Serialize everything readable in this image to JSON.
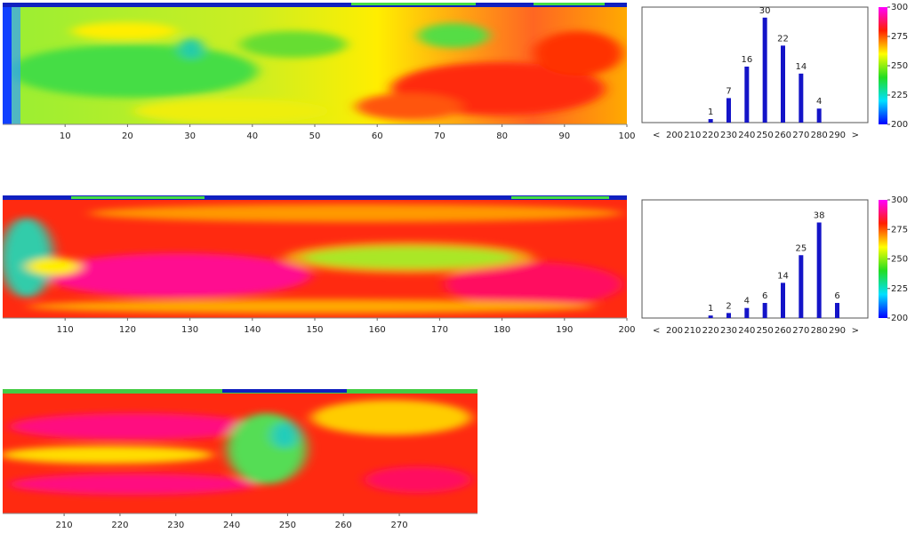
{
  "chart_data": [
    {
      "type": "heatmap",
      "xlim": [
        0,
        100
      ],
      "xticks": [
        10,
        20,
        30,
        40,
        50,
        60,
        70,
        80,
        90,
        100
      ]
    },
    {
      "type": "bar",
      "categories": [
        "<",
        "200",
        "210",
        "220",
        "230",
        "240",
        "250",
        "260",
        "270",
        "280",
        "290",
        ">"
      ],
      "values": [
        0,
        0,
        0,
        1,
        7,
        16,
        30,
        22,
        14,
        4,
        0,
        0
      ],
      "color": "#1414c8",
      "ylim": [
        0,
        33
      ],
      "colorbar": {
        "clim": [
          200,
          300
        ],
        "ticks": [
          200,
          225,
          250,
          275,
          300
        ],
        "colors": [
          "#0000ff",
          "#00e0ff",
          "#22dd22",
          "#ffff00",
          "#ff2000",
          "#ff00ff"
        ]
      }
    },
    {
      "type": "heatmap",
      "xlim": [
        100,
        200
      ],
      "xticks": [
        110,
        120,
        130,
        140,
        150,
        160,
        170,
        180,
        190,
        200
      ]
    },
    {
      "type": "bar",
      "categories": [
        "<",
        "200",
        "210",
        "220",
        "230",
        "240",
        "250",
        "260",
        "270",
        "280",
        "290",
        ">"
      ],
      "values": [
        0,
        0,
        0,
        1,
        2,
        4,
        6,
        14,
        25,
        38,
        6,
        0
      ],
      "color": "#1414c8",
      "ylim": [
        0,
        47
      ],
      "colorbar": {
        "clim": [
          200,
          300
        ],
        "ticks": [
          200,
          225,
          250,
          275,
          300
        ],
        "colors": [
          "#0000ff",
          "#00e0ff",
          "#22dd22",
          "#ffff00",
          "#ff2000",
          "#ff00ff"
        ]
      }
    },
    {
      "type": "heatmap",
      "xlim": [
        199,
        284
      ],
      "xticks": [
        210,
        220,
        230,
        240,
        250,
        260,
        270
      ]
    }
  ]
}
